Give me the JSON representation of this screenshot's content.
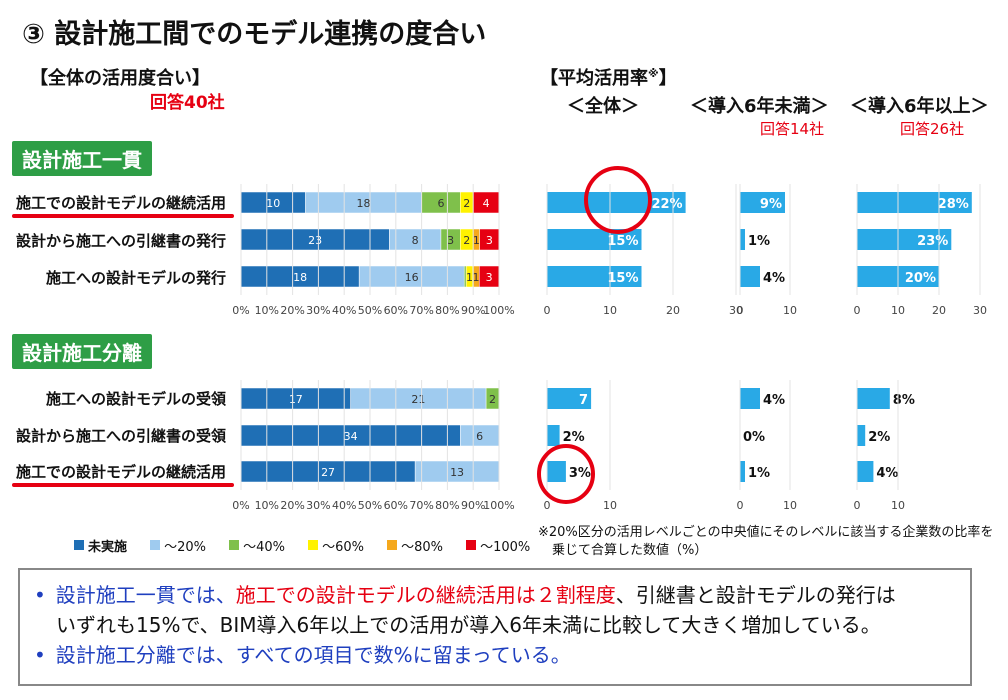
{
  "title": "③ 設計施工間でのモデル連携の度合い",
  "left_header": "【全体の活用度合い】",
  "left_count": "回答40社",
  "avg_header_line1": "【平均活用率",
  "avg_header_mark": "※",
  "avg_header_line1_close": "】",
  "col_all_label": "＜全体＞",
  "col_lt6_label": "＜導入6年未満＞",
  "col_lt6_count": "回答14社",
  "col_ge6_label": "＜導入6年以上＞",
  "col_ge6_count": "回答26社",
  "sections": [
    {
      "name": "設計施工一貫",
      "rows": [
        {
          "label": "施工での設計モデルの継続活用",
          "underlined": true,
          "values": [
            10,
            18,
            6,
            2,
            0,
            4
          ],
          "labels": [
            "10",
            "18",
            "6",
            "2",
            "",
            "4"
          ],
          "all": 22,
          "all_label": "22%",
          "lt6": 9,
          "lt6_label": "9%",
          "ge6": 28,
          "ge6_label": "28%"
        },
        {
          "label": "設計から施工への引継書の発行",
          "underlined": false,
          "values": [
            23,
            8,
            3,
            2,
            1,
            3
          ],
          "labels": [
            "23",
            "8",
            "3",
            "2",
            "1",
            "3"
          ],
          "all": 15,
          "all_label": "15%",
          "lt6": 1,
          "lt6_label": "1%",
          "ge6": 23,
          "ge6_label": "23%"
        },
        {
          "label": "施工への設計モデルの発行",
          "underlined": false,
          "values": [
            18,
            16,
            0.3,
            1,
            1,
            3
          ],
          "labels": [
            "18",
            "16",
            "",
            "1",
            "1",
            "3"
          ],
          "all": 15,
          "all_label": "15%",
          "lt6": 4,
          "lt6_label": "4%",
          "ge6": 20,
          "ge6_label": "20%"
        }
      ]
    },
    {
      "name": "設計施工分離",
      "rows": [
        {
          "label": "施工への設計モデルの受領",
          "underlined": false,
          "values": [
            17,
            21,
            2,
            0,
            0,
            0
          ],
          "labels": [
            "17",
            "21",
            "2",
            "",
            "",
            ""
          ],
          "all": 7,
          "all_label": "7",
          "lt6": 4,
          "lt6_label": "4%",
          "ge6": 8,
          "ge6_label": "8%"
        },
        {
          "label": "設計から施工への引継書の受領",
          "underlined": false,
          "values": [
            34,
            6,
            0,
            0,
            0,
            0
          ],
          "labels": [
            "34",
            "6",
            "",
            "",
            "",
            ""
          ],
          "all": 2,
          "all_label": "2%",
          "lt6": 0,
          "lt6_label": "0%",
          "ge6": 2,
          "ge6_label": "2%"
        },
        {
          "label": "施工での設計モデルの継続活用",
          "underlined": true,
          "values": [
            27,
            13,
            0,
            0,
            0,
            0
          ],
          "labels": [
            "27",
            "13",
            "",
            "",
            "",
            ""
          ],
          "all": 3,
          "all_label": "3%",
          "lt6": 1,
          "lt6_label": "1%",
          "ge6": 4,
          "ge6_label": "4%"
        }
      ]
    }
  ],
  "pct_ticks": [
    "0%",
    "10%",
    "20%",
    "30%",
    "40%",
    "50%",
    "60%",
    "70%",
    "80%",
    "90%",
    "100%"
  ],
  "all_ticks": [
    "0",
    "10",
    "20",
    "30"
  ],
  "small_ticks": [
    "0",
    "10"
  ],
  "ge6_ticks_top": [
    "0",
    "10",
    "20",
    "30"
  ],
  "legend": [
    {
      "label": "未実施",
      "color": "#1f6fb5"
    },
    {
      "label": "～20%",
      "color": "#9fcbef"
    },
    {
      "label": "～40%",
      "color": "#7fc04b"
    },
    {
      "label": "～60%",
      "color": "#fff200"
    },
    {
      "label": "～80%",
      "color": "#f5a81c"
    },
    {
      "label": "～100%",
      "color": "#e60012"
    }
  ],
  "avg_bar_color": "#29a9e6",
  "note_line1": "※20%区分の活用レベルごとの中央値にそのレベルに該当する企業数の比率を",
  "note_line2": "乗じて合算した数値（%）",
  "summary": {
    "line1_bullet": "•",
    "line1_blue_a": "設計施工一貫では、",
    "line1_red": "施工での設計モデルの継続活用は２割程度",
    "line1_black": "、引継書と設計モデルの発行は",
    "line2": "いずれも15%で、BIM導入6年以上での活用が導入6年未満に比較して大きく増加している。",
    "line3_bullet": "•",
    "line3_blue": "設計施工分離では、すべての項目で数%に留まっている。"
  }
}
